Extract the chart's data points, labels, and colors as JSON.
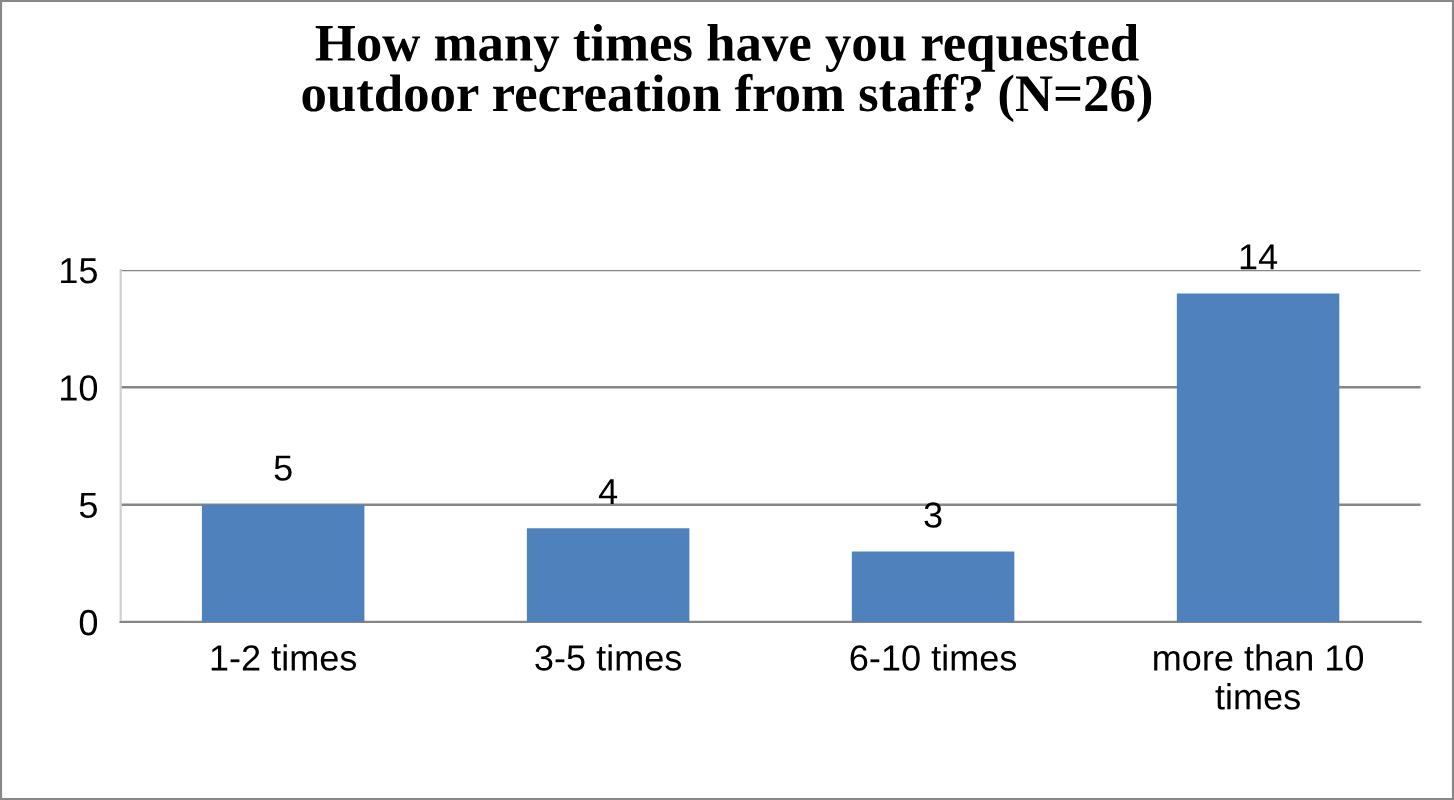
{
  "chart_data": {
    "type": "bar",
    "title": "How many times have you requested\noutdoor recreation from staff? (N=26)",
    "categories": [
      "1-2 times",
      "3-5 times",
      "6-10 times",
      "more than 10\ntimes"
    ],
    "values": [
      5,
      4,
      3,
      14
    ],
    "color": "#4f81bd",
    "ylim": [
      0,
      15
    ],
    "yticks": [
      0,
      5,
      10,
      15
    ],
    "grid": "y",
    "data_labels": true,
    "legend": false
  }
}
